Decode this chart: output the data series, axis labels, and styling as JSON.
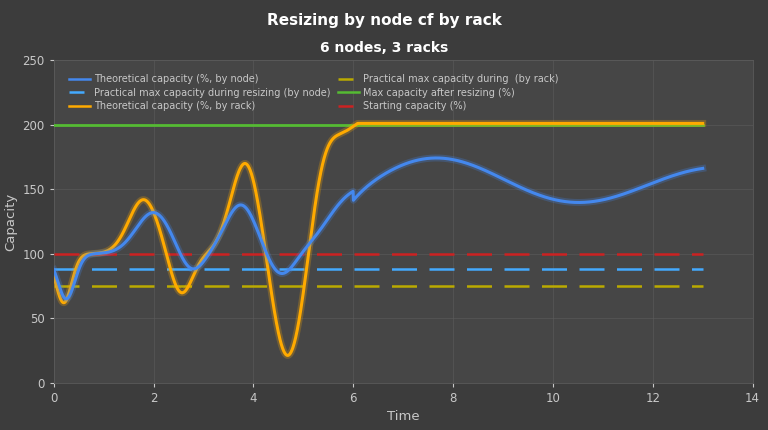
{
  "title": "Resizing by node cf by rack",
  "subtitle": "6 nodes, 3 racks",
  "xlabel": "Time",
  "ylabel": "Capacity",
  "xlim": [
    0,
    14
  ],
  "ylim": [
    0,
    250
  ],
  "xticks": [
    0,
    2,
    4,
    6,
    8,
    10,
    12,
    14
  ],
  "yticks": [
    0,
    50,
    100,
    150,
    200,
    250
  ],
  "background_color": "#3c3c3c",
  "axes_background": "#464646",
  "grid_color": "#5a5a5a",
  "text_color": "#c8c8c8",
  "green_line_y": 200,
  "red_dashed_y": 100,
  "blue_dashed_y": 88,
  "yellow_dashed_y": 75,
  "colors": {
    "blue_solid": "#4488ee",
    "yellow_solid": "#ffaa00",
    "green_solid": "#55bb33",
    "red_dashed": "#cc2222",
    "blue_dashed": "#44aaff",
    "yellow_dashed": "#bbaa00"
  },
  "legend": [
    {
      "label": "Theoretical capacity (%, by node)",
      "color": "#4488ee",
      "linestyle": "solid"
    },
    {
      "label": "Practical max capacity during resizing (by node)",
      "color": "#44aaff",
      "linestyle": "dashed"
    },
    {
      "label": "Theoretical capacity (%, by rack)",
      "color": "#ffaa00",
      "linestyle": "solid"
    },
    {
      "label": "Practical max capacity during  (by rack)",
      "color": "#bbaa00",
      "linestyle": "dashed"
    },
    {
      "label": "Max capacity after resizing (%)",
      "color": "#55bb33",
      "linestyle": "solid"
    },
    {
      "label": "Starting capacity (%)",
      "color": "#cc2222",
      "linestyle": "dashed"
    }
  ]
}
